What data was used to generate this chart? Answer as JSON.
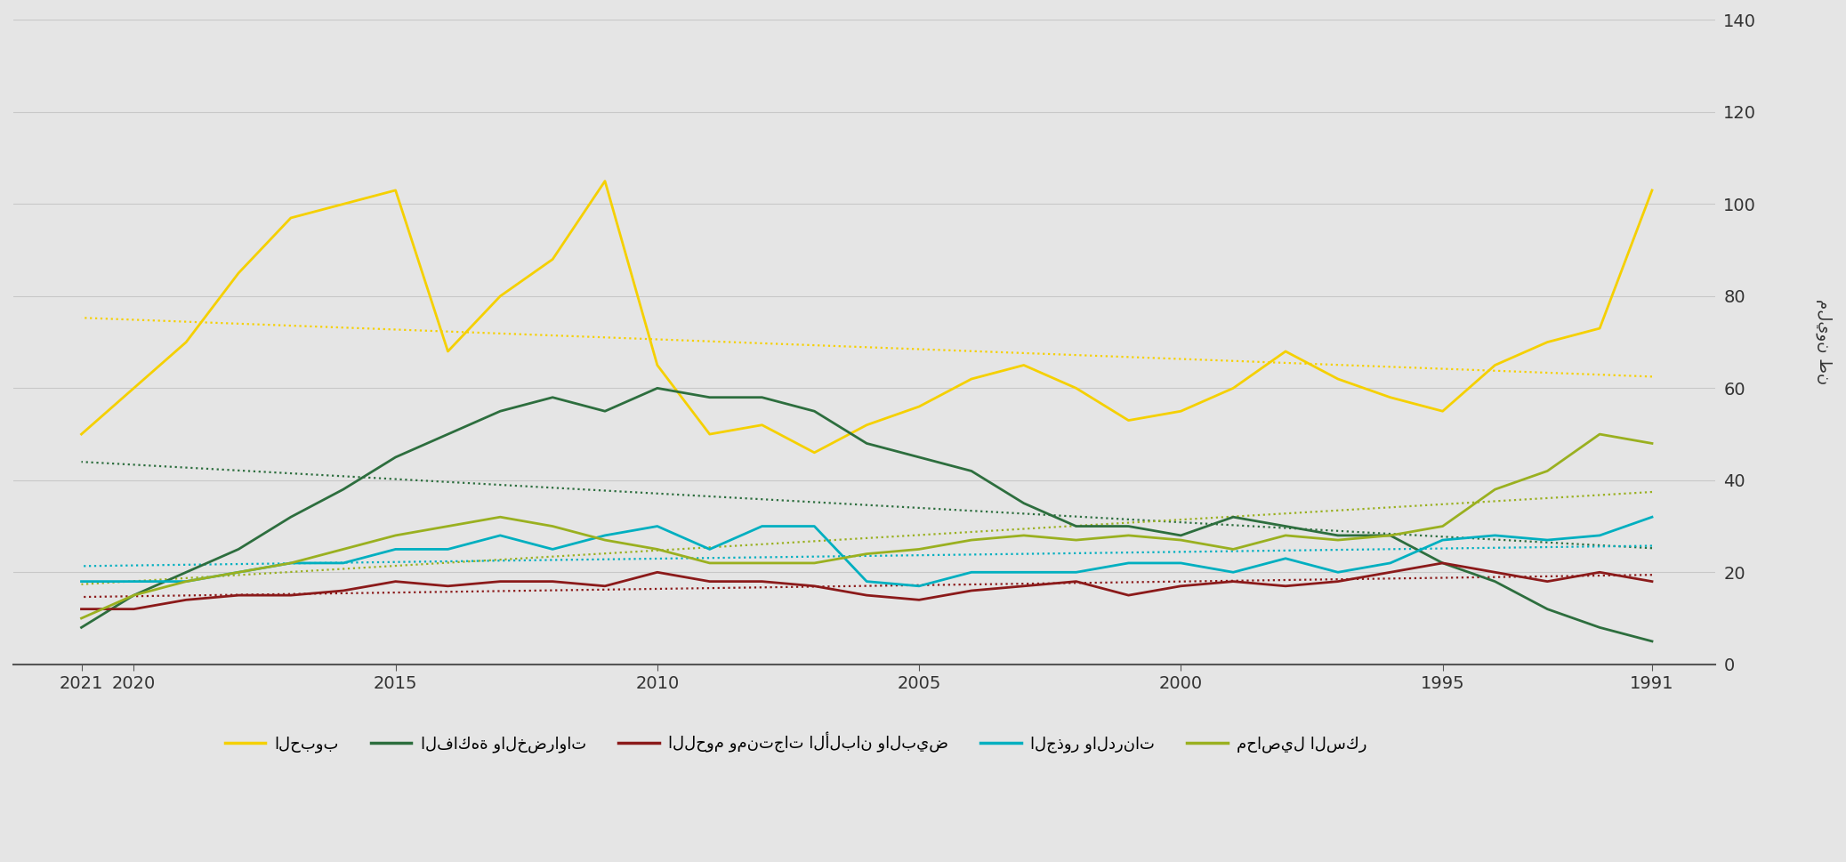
{
  "years": [
    1991,
    1992,
    1993,
    1994,
    1995,
    1996,
    1997,
    1998,
    1999,
    2000,
    2001,
    2002,
    2003,
    2004,
    2005,
    2006,
    2007,
    2008,
    2009,
    2010,
    2011,
    2012,
    2013,
    2014,
    2015,
    2016,
    2017,
    2018,
    2019,
    2020,
    2021
  ],
  "cereals": [
    103,
    73,
    70,
    65,
    55,
    58,
    62,
    68,
    60,
    55,
    53,
    60,
    65,
    62,
    56,
    52,
    46,
    52,
    50,
    65,
    105,
    88,
    80,
    68,
    103,
    100,
    97,
    85,
    70,
    60,
    50
  ],
  "fruits_veg": [
    5,
    8,
    12,
    18,
    22,
    28,
    28,
    30,
    32,
    28,
    30,
    30,
    35,
    42,
    45,
    48,
    55,
    58,
    58,
    60,
    55,
    58,
    55,
    50,
    45,
    38,
    32,
    25,
    20,
    15,
    8
  ],
  "meat_dairy": [
    18,
    20,
    18,
    20,
    22,
    20,
    18,
    17,
    18,
    17,
    15,
    18,
    17,
    16,
    14,
    15,
    17,
    18,
    18,
    20,
    17,
    18,
    18,
    17,
    18,
    16,
    15,
    15,
    14,
    12,
    12
  ],
  "roots_tubers": [
    32,
    28,
    27,
    28,
    27,
    22,
    20,
    23,
    20,
    22,
    22,
    20,
    20,
    20,
    17,
    18,
    30,
    30,
    25,
    30,
    28,
    25,
    28,
    25,
    25,
    22,
    22,
    20,
    18,
    18,
    18
  ],
  "sugar_crops": [
    48,
    50,
    42,
    38,
    30,
    28,
    27,
    28,
    25,
    27,
    28,
    27,
    28,
    27,
    25,
    24,
    22,
    22,
    22,
    25,
    27,
    30,
    32,
    30,
    28,
    25,
    22,
    20,
    18,
    15,
    10
  ],
  "colors": {
    "cereals": "#f5d000",
    "fruits_veg": "#2d6e3e",
    "meat_dairy": "#8b1a1a",
    "roots_tubers": "#00afc0",
    "sugar_crops": "#9ab020"
  },
  "legend_labels": [
    "الحبوب",
    "الفاكهة والخضراوات",
    "اللحوم ومنتجات الألبان والبيض",
    "الجذور والدرنات",
    "محاصيل السكر"
  ],
  "ylabel": "مليون طن",
  "ylim": [
    0,
    140
  ],
  "yticks": [
    0,
    20,
    40,
    60,
    80,
    100,
    120,
    140
  ],
  "xticks": [
    2021,
    2020,
    2015,
    2010,
    2005,
    2000,
    1995,
    1991
  ],
  "xlim_left": 2022.3,
  "xlim_right": 1989.8,
  "background_color": "#e5e5e5",
  "grid_color": "#c8c8c8"
}
